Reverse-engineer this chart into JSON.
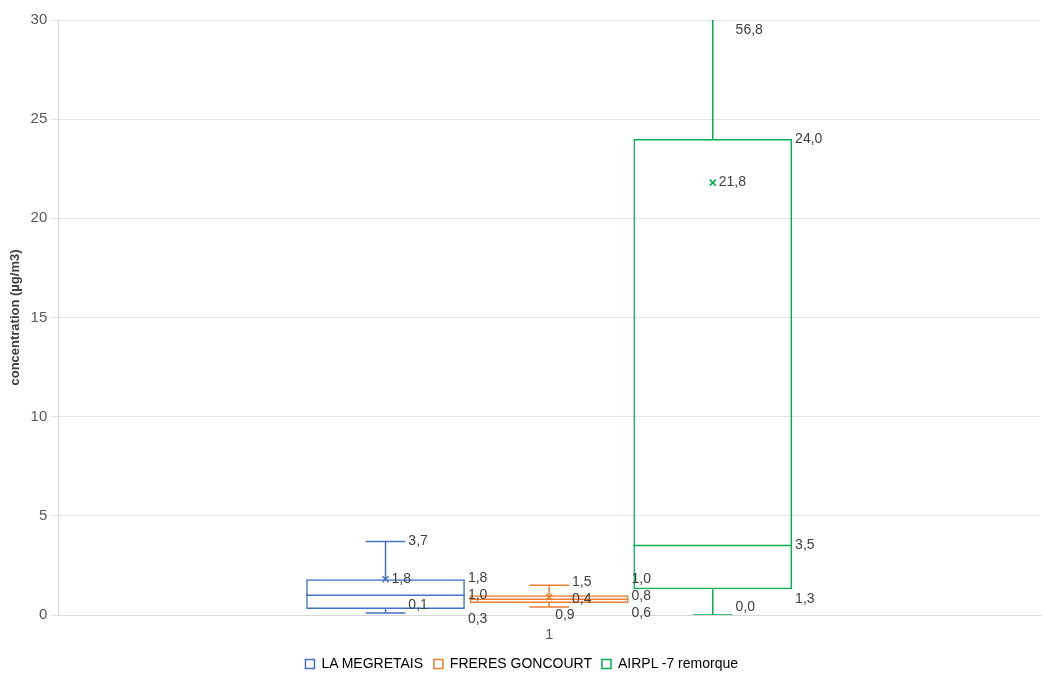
{
  "chart_data": {
    "type": "box",
    "ylabel": "concentration (µg/m3)",
    "categories": [
      "1"
    ],
    "series": [
      {
        "name": "LA MEGRETAIS",
        "color": "#4472c4",
        "boxes": [
          {
            "low": 0.1,
            "q1": 0.3,
            "median": 1.0,
            "q3": 1.8,
            "high": 3.7,
            "mean": 1.8
          }
        ],
        "value_labels": [
          [
            "0,1",
            "0,3",
            "1,0",
            "1,8",
            "3,7",
            "1,8"
          ]
        ]
      },
      {
        "name": "FRERES GONCOURT",
        "color": "#ed7d31",
        "boxes": [
          {
            "low": 0.4,
            "q1": 0.6,
            "median": 0.8,
            "q3": 1.0,
            "high": 1.5,
            "mean": 0.9
          }
        ],
        "value_labels": [
          [
            "0,4",
            "0,6",
            "0,8",
            "1,0",
            "1,5",
            "0,9"
          ]
        ]
      },
      {
        "name": "AIRPL -7 remorque",
        "color": "#00b050",
        "boxes": [
          {
            "low": 0.0,
            "q1": 1.3,
            "median": 3.5,
            "q3": 24.0,
            "high": 56.8,
            "mean": 21.8
          }
        ],
        "value_labels": [
          [
            "0,0",
            "1,3",
            "3,5",
            "24,0",
            "56,8",
            "21,8"
          ]
        ]
      }
    ],
    "ylim": [
      0,
      30
    ],
    "yticks": [
      0,
      5,
      10,
      15,
      20,
      25,
      30
    ],
    "grid": "y",
    "legend": "bottom"
  }
}
